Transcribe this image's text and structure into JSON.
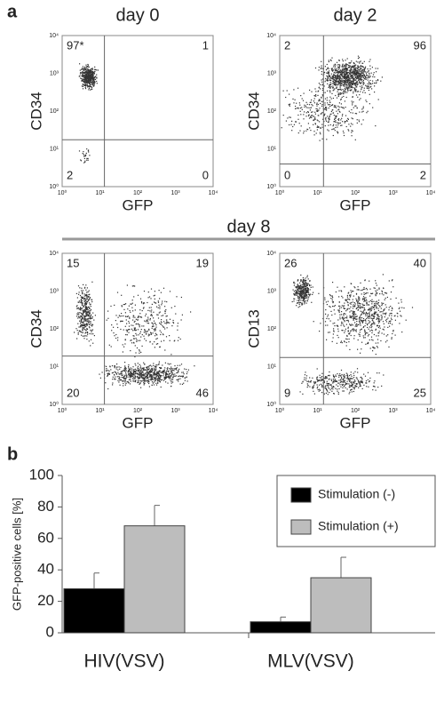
{
  "panel_a": {
    "label": "a",
    "group_title": "day 8",
    "tick_labels": [
      "10⁰",
      "10¹",
      "10²",
      "10³",
      "10⁴"
    ],
    "plots": [
      {
        "title": "day 0",
        "x_label": "GFP",
        "y_label": "CD34",
        "quadrants": {
          "ul": "97*",
          "ur": 1,
          "ll": 2,
          "lr": 0
        }
      },
      {
        "title": "day 2",
        "x_label": "GFP",
        "y_label": "CD34",
        "quadrants": {
          "ul": 2,
          "ur": 96,
          "ll": 0,
          "lr": 2
        }
      },
      {
        "x_label": "GFP",
        "y_label": "CD34",
        "quadrants": {
          "ul": 15,
          "ur": 19,
          "ll": 20,
          "lr": 46
        }
      },
      {
        "x_label": "GFP",
        "y_label": "CD13",
        "quadrants": {
          "ul": 26,
          "ur": 40,
          "ll": 9,
          "lr": 25
        }
      }
    ]
  },
  "chart_data": {
    "type": "bar",
    "panel_label": "b",
    "y_label": "GFP-positive cells [%]",
    "categories": [
      "HIV(VSV)",
      "MLV(VSV)"
    ],
    "series": [
      {
        "name": "Stimulation (-)",
        "color": "#000000",
        "values": [
          28,
          7
        ],
        "errors": [
          10,
          3
        ]
      },
      {
        "name": "Stimulation (+)",
        "color": "#bdbdbd",
        "values": [
          68,
          35
        ],
        "errors": [
          13,
          13
        ]
      }
    ],
    "ylim": [
      0,
      100
    ],
    "yticks": [
      0,
      20,
      40,
      60,
      80,
      100
    ],
    "legend": "top-right"
  }
}
